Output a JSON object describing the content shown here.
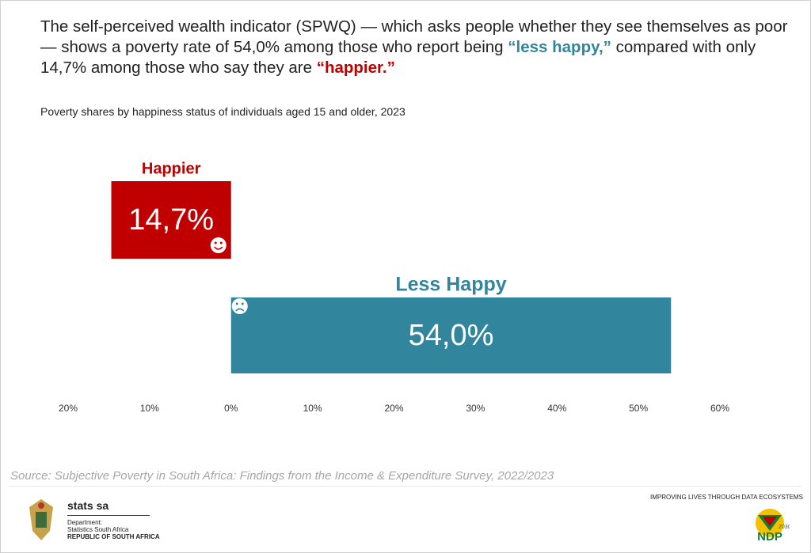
{
  "headline": [
    "The self-perceived wealth indicator (SPWQ) — which asks people whether they see themselves as poor — shows a poverty rate of 54,0% among those who report being ",
    "“less happy,”",
    " compared with only 14,7% among those who say they are ",
    "“happier.”"
  ],
  "chart_data": {
    "type": "diverging-bar",
    "subtitle": "Poverty shares by happiness status of individuals aged 15 and older, 2023",
    "categories": [
      "Happier",
      "Less Happy"
    ],
    "values": [
      -14.7,
      54.0
    ],
    "value_labels": [
      "14,7%",
      "54,0%"
    ],
    "colors": [
      "#c00000",
      "#31859c"
    ],
    "xlim": [
      -20,
      60
    ],
    "xticks": [
      {
        "value": -20,
        "label": "20%"
      },
      {
        "value": -10,
        "label": "10%"
      },
      {
        "value": 0,
        "label": "0%"
      },
      {
        "value": 10,
        "label": "10%"
      },
      {
        "value": 20,
        "label": "20%"
      },
      {
        "value": 30,
        "label": "30%"
      },
      {
        "value": 40,
        "label": "40%"
      },
      {
        "value": 50,
        "label": "50%"
      },
      {
        "value": 60,
        "label": "60%"
      }
    ],
    "source": "Source: Subjective Poverty in South Africa: Findings from the Income & Expenditure Survey, 2022/2023"
  },
  "footer": {
    "org": "stats sa",
    "dept": "Department:",
    "dept_name": "Statistics South Africa",
    "country": "REPUBLIC OF SOUTH AFRICA",
    "tagline": "IMPROVING LIVES THROUGH DATA ECOSYSTEMS",
    "ndp": "NDP",
    "ndp_year": "2030"
  }
}
